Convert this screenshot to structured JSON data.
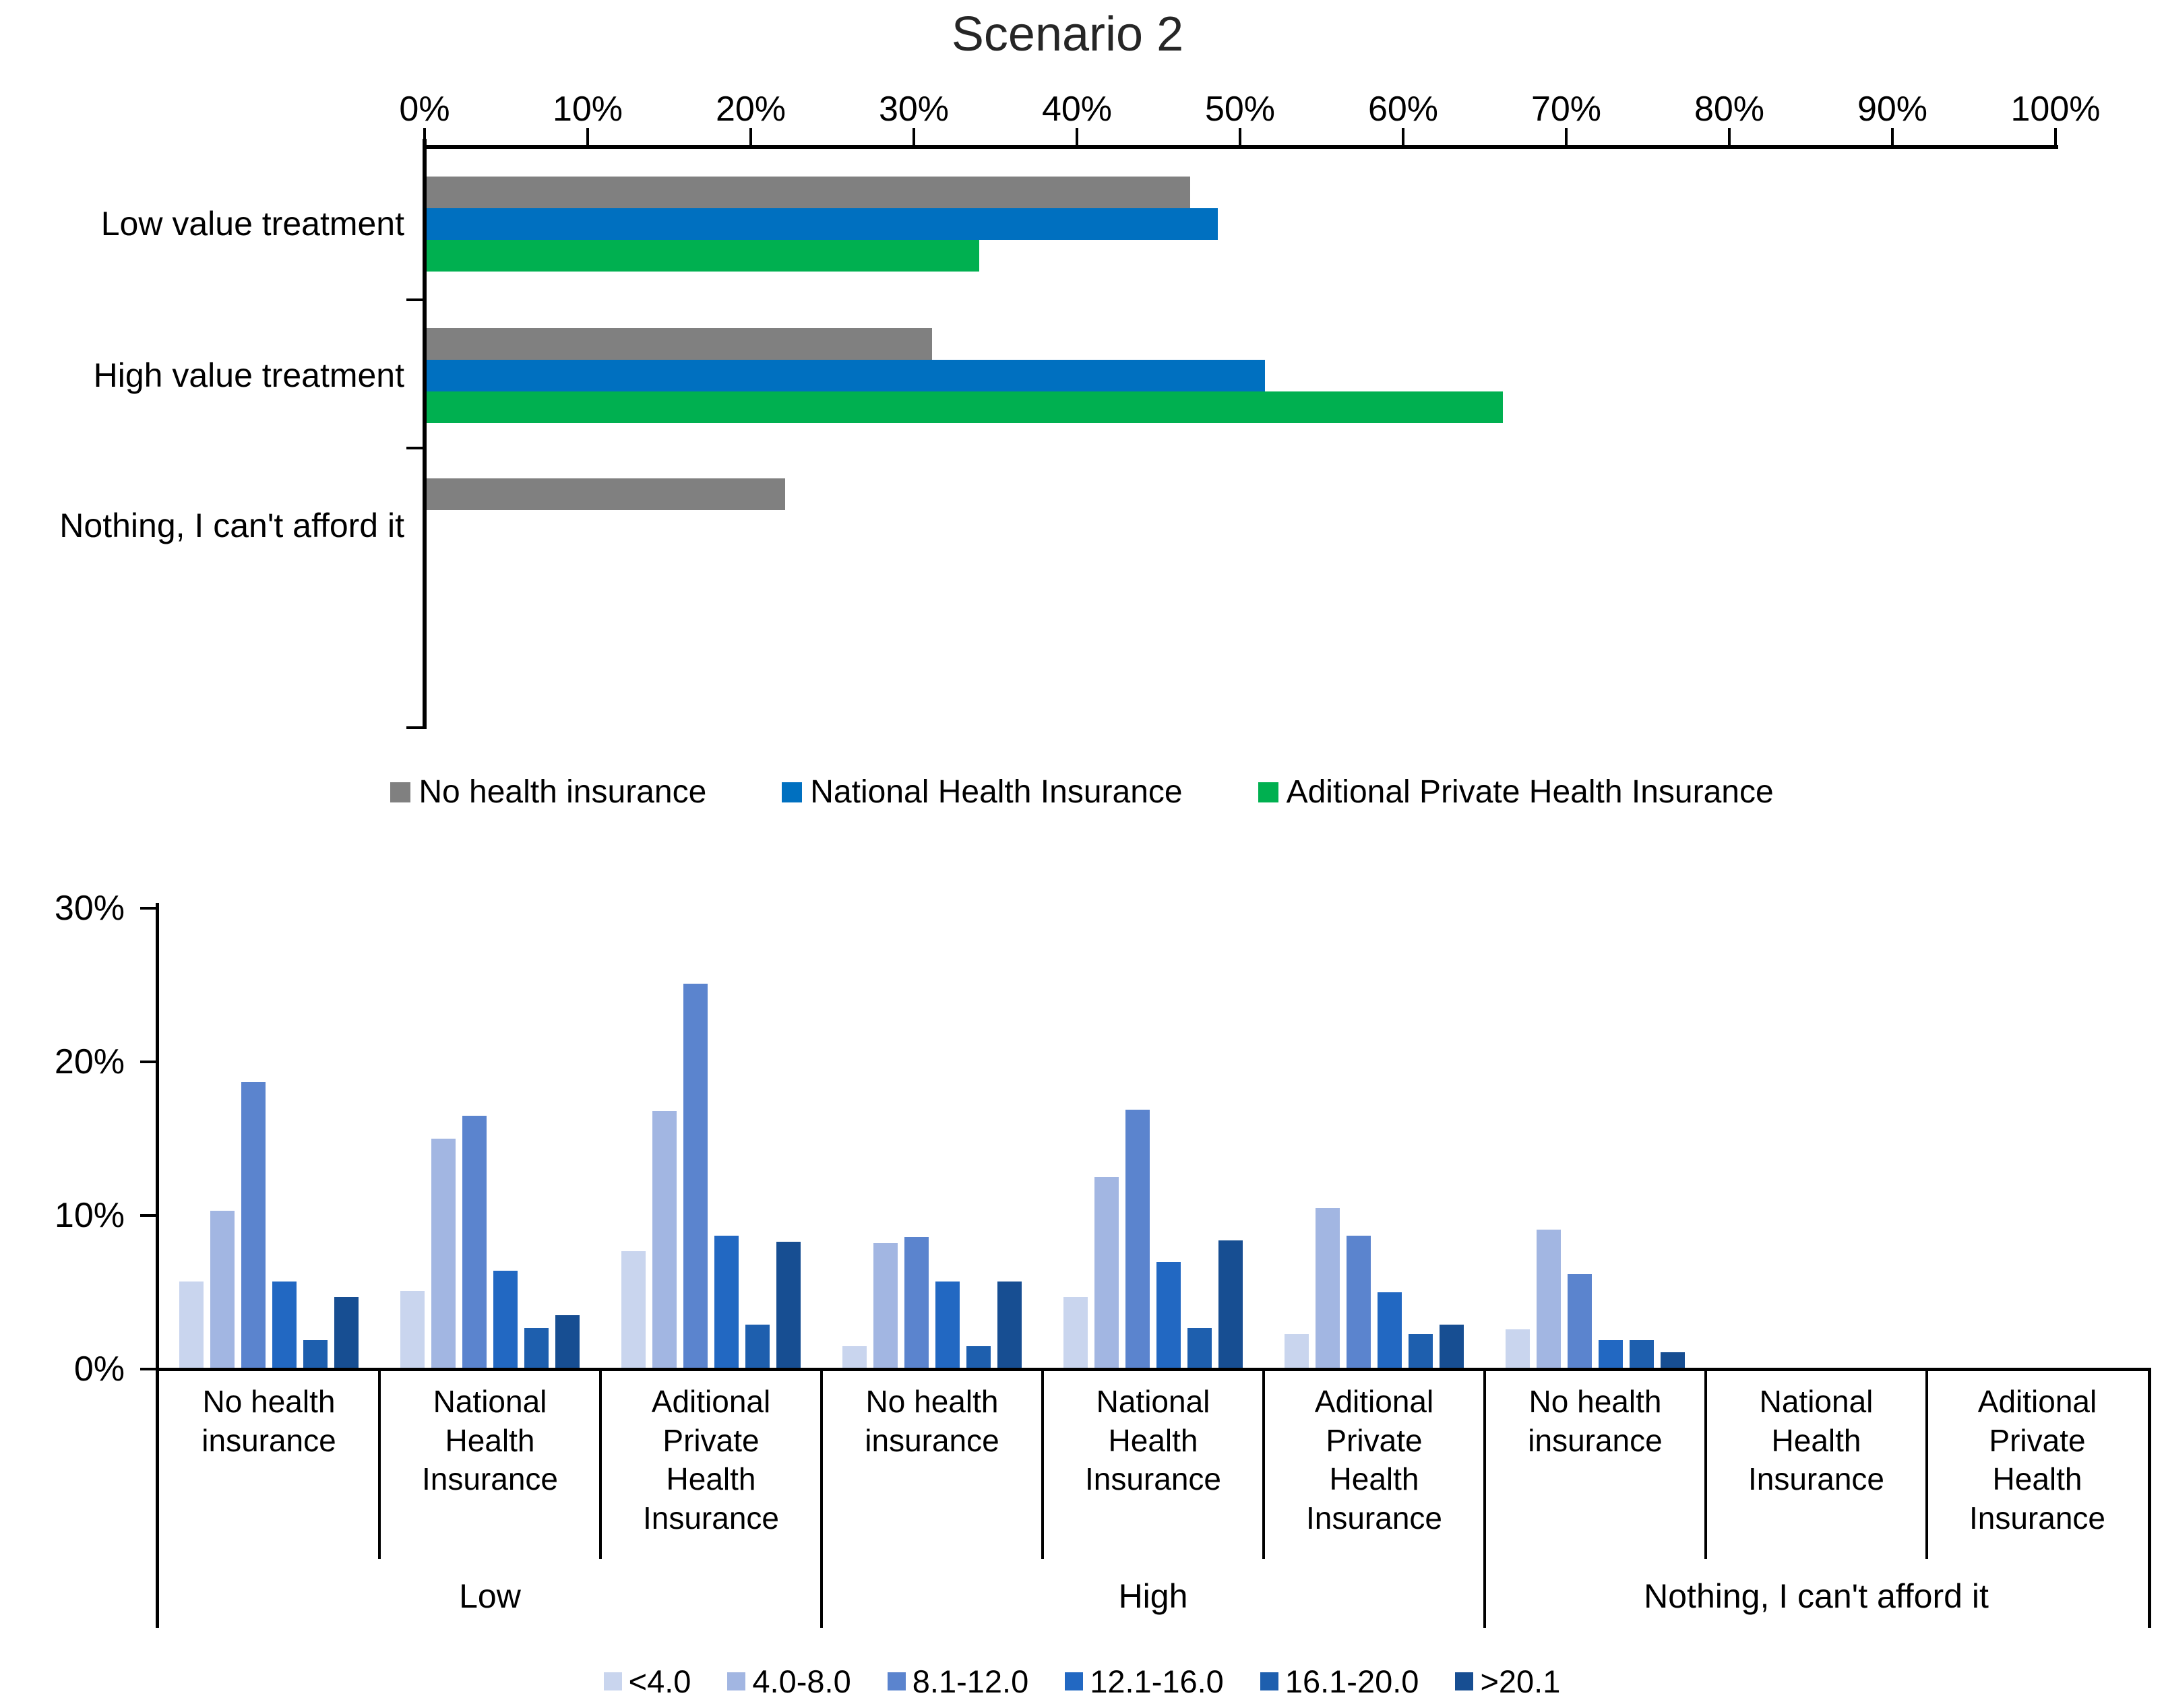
{
  "title": "Scenario 2",
  "chart_data": [
    {
      "type": "bar",
      "orientation": "horizontal",
      "title": "Scenario 2",
      "xlabel": "",
      "ylabel": "",
      "xlim": [
        0,
        100
      ],
      "grid": false,
      "legend_position": "bottom",
      "x_ticks": [
        "0%",
        "10%",
        "20%",
        "30%",
        "40%",
        "50%",
        "60%",
        "70%",
        "80%",
        "90%",
        "100%"
      ],
      "categories": [
        "Low value treatment",
        "High value treatment",
        "Nothing, I can't afford it"
      ],
      "series": [
        {
          "name": "No health insurance",
          "color": "#808080",
          "values": [
            46.8,
            31.0,
            22.0
          ]
        },
        {
          "name": "National Health Insurance",
          "color": "#0070C0",
          "values": [
            48.5,
            51.4,
            0
          ]
        },
        {
          "name": "Aditional Private Health Insurance",
          "color": "#00B050",
          "values": [
            33.9,
            66.0,
            0
          ]
        }
      ]
    },
    {
      "type": "bar",
      "orientation": "vertical",
      "title": "",
      "xlabel": "",
      "ylabel": "",
      "ylim": [
        0,
        30
      ],
      "grid": false,
      "legend_position": "bottom",
      "y_ticks": [
        "30%",
        "20%",
        "10%",
        "0%"
      ],
      "series_legend": [
        {
          "label": "<4.0",
          "color": "#C9D5EE"
        },
        {
          "label": "4.0-8.0",
          "color": "#A2B6E2"
        },
        {
          "label": "8.1-12.0",
          "color": "#5B84CE"
        },
        {
          "label": "12.1-16.0",
          "color": "#2268C2"
        },
        {
          "label": "16.1-20.0",
          "color": "#1E5FAE"
        },
        {
          "label": ">20.1",
          "color": "#174E92"
        }
      ],
      "groups": [
        {
          "label": "Low",
          "subgroups": [
            {
              "label": "No health insurance",
              "values": [
                5.6,
                10.2,
                18.6,
                5.6,
                1.8,
                4.6
              ]
            },
            {
              "label": "National Health Insurance",
              "values": [
                5.0,
                14.9,
                16.4,
                6.3,
                2.6,
                3.4
              ]
            },
            {
              "label": "Aditional Private Health Insurance",
              "values": [
                7.6,
                16.7,
                25.0,
                8.6,
                2.8,
                8.2
              ]
            }
          ]
        },
        {
          "label": "High",
          "subgroups": [
            {
              "label": "No health insurance",
              "values": [
                1.4,
                8.1,
                8.5,
                5.6,
                1.4,
                5.6
              ]
            },
            {
              "label": "National Health Insurance",
              "values": [
                4.6,
                12.4,
                16.8,
                6.9,
                2.6,
                8.3
              ]
            },
            {
              "label": "Aditional Private Health Insurance",
              "values": [
                2.2,
                10.4,
                8.6,
                4.9,
                2.2,
                2.8
              ]
            }
          ]
        },
        {
          "label": "Nothing, I can't afford it",
          "subgroups": [
            {
              "label": "No health insurance",
              "values": [
                2.5,
                9.0,
                6.1,
                1.8,
                1.8,
                1.0
              ]
            },
            {
              "label": "National Health Insurance",
              "values": [
                0,
                0,
                0,
                0,
                0,
                0
              ]
            },
            {
              "label": "Aditional Private Health Insurance",
              "values": [
                0,
                0,
                0,
                0,
                0,
                0
              ]
            }
          ]
        }
      ]
    }
  ]
}
